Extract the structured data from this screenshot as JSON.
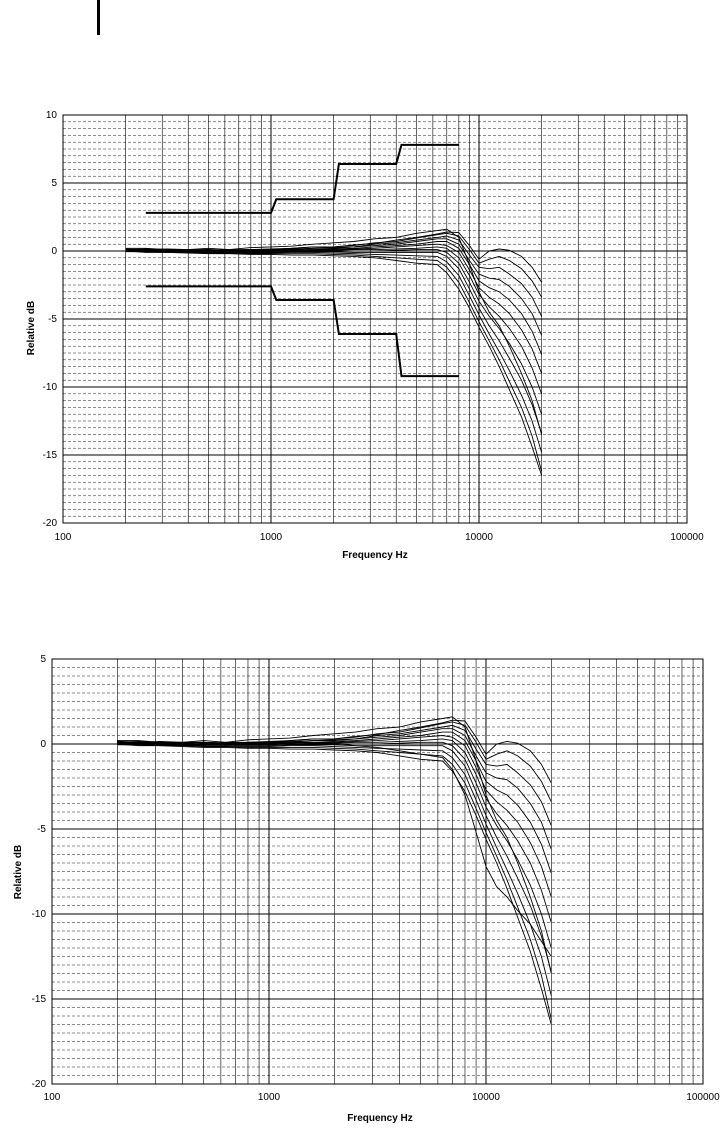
{
  "chart_data": [
    {
      "type": "line",
      "title": "",
      "xlabel": "Frequency Hz",
      "ylabel": "Relative dB",
      "x_scale": "log",
      "xlim": [
        100,
        100000
      ],
      "ylim": [
        -20,
        10
      ],
      "y_major_step": 5,
      "x_ticks": [
        "100",
        "1000",
        "10000",
        "100000"
      ],
      "y_ticks": [
        "10",
        "5",
        "0",
        "-5",
        "-10",
        "-15",
        "-20"
      ],
      "grid": true,
      "legend": "none",
      "curve_color": "#000000",
      "x": [
        200,
        250,
        315,
        400,
        500,
        630,
        800,
        1000,
        1250,
        1600,
        2000,
        2500,
        3150,
        4000,
        5000,
        6300,
        7000,
        8000,
        9000,
        10000,
        11200,
        12500,
        14000,
        16000,
        18000,
        20000
      ],
      "series": [
        {
          "values": [
            0.1,
            0.15,
            0.1,
            0.05,
            0.1,
            0.0,
            0.1,
            0.15,
            0.2,
            0.3,
            0.3,
            0.45,
            0.55,
            0.8,
            1.0,
            1.25,
            1.4,
            1.35,
            0.4,
            -0.6,
            0.0,
            0.15,
            0.05,
            -0.4,
            -1.2,
            -2.3
          ]
        },
        {
          "values": [
            0.2,
            0.2,
            0.1,
            0.1,
            0.1,
            0.05,
            0.1,
            0.1,
            0.2,
            0.3,
            0.3,
            0.4,
            0.6,
            0.7,
            0.95,
            1.2,
            1.3,
            1.1,
            0.1,
            -0.9,
            -0.6,
            -0.4,
            -0.7,
            -1.3,
            -2.2,
            -3.4
          ]
        },
        {
          "values": [
            0.1,
            0.1,
            0.15,
            0.1,
            0.05,
            0.1,
            0.1,
            0.1,
            0.15,
            0.2,
            0.25,
            0.3,
            0.5,
            0.6,
            0.8,
            1.0,
            1.1,
            0.8,
            -0.3,
            -1.2,
            -1.3,
            -1.2,
            -1.7,
            -2.4,
            -3.4,
            -4.8
          ]
        },
        {
          "values": [
            0.15,
            0.1,
            0.1,
            0.05,
            0.1,
            0.05,
            0.05,
            0.1,
            0.1,
            0.2,
            0.2,
            0.3,
            0.4,
            0.5,
            0.7,
            0.9,
            0.9,
            0.5,
            -0.7,
            -1.7,
            -2.0,
            -2.1,
            -2.6,
            -3.5,
            -4.6,
            -6.2
          ]
        },
        {
          "values": [
            0.1,
            0.1,
            0.05,
            0.05,
            0.0,
            0.0,
            0.05,
            0.05,
            0.1,
            0.1,
            0.15,
            0.2,
            0.3,
            0.4,
            0.5,
            0.7,
            0.7,
            0.2,
            -1.0,
            -2.2,
            -2.7,
            -3.0,
            -3.6,
            -4.6,
            -5.9,
            -7.6
          ]
        },
        {
          "values": [
            0.1,
            0.05,
            0.05,
            0.0,
            0.0,
            0.0,
            0.0,
            0.05,
            0.05,
            0.1,
            0.1,
            0.15,
            0.2,
            0.3,
            0.4,
            0.5,
            0.4,
            -0.1,
            -1.4,
            -2.7,
            -3.4,
            -3.9,
            -4.6,
            -5.8,
            -7.2,
            -9.0
          ]
        },
        {
          "values": [
            0.05,
            0.05,
            0.0,
            0.0,
            0.0,
            -0.05,
            0.0,
            0.0,
            0.0,
            0.05,
            0.05,
            0.1,
            0.1,
            0.15,
            0.2,
            0.3,
            0.2,
            -0.5,
            -1.8,
            -3.2,
            -4.1,
            -4.8,
            -5.7,
            -7.0,
            -8.6,
            -10.5
          ]
        },
        {
          "values": [
            0.1,
            0.0,
            0.0,
            -0.05,
            -0.05,
            -0.05,
            -0.05,
            -0.05,
            0.0,
            0.0,
            0.0,
            0.0,
            0.0,
            0.05,
            0.1,
            0.1,
            -0.1,
            -0.9,
            -2.3,
            -3.7,
            -4.8,
            -5.7,
            -6.8,
            -8.3,
            -10.0,
            -12.0
          ]
        },
        {
          "values": [
            0.0,
            0.0,
            -0.05,
            -0.05,
            -0.1,
            -0.1,
            -0.1,
            -0.1,
            -0.05,
            -0.05,
            -0.05,
            -0.1,
            -0.1,
            -0.1,
            -0.1,
            -0.1,
            -0.4,
            -1.3,
            -2.8,
            -4.2,
            -5.5,
            -6.6,
            -7.9,
            -9.5,
            -11.3,
            -13.4
          ]
        },
        {
          "values": [
            0.0,
            -0.05,
            -0.05,
            -0.1,
            -0.1,
            -0.15,
            -0.15,
            -0.15,
            -0.1,
            -0.1,
            -0.15,
            -0.2,
            -0.25,
            -0.3,
            -0.35,
            -0.4,
            -0.8,
            -1.8,
            -3.3,
            -4.7,
            -6.1,
            -7.4,
            -8.8,
            -10.6,
            -12.5,
            -14.8
          ]
        },
        {
          "values": [
            -0.05,
            -0.05,
            -0.1,
            -0.1,
            -0.15,
            -0.15,
            -0.2,
            -0.2,
            -0.2,
            -0.2,
            -0.25,
            -0.3,
            -0.4,
            -0.5,
            -0.6,
            -0.7,
            -1.2,
            -2.3,
            -3.8,
            -5.2,
            -6.6,
            -8.0,
            -9.6,
            -11.5,
            -13.6,
            -16.2
          ]
        },
        {
          "values": [
            0.0,
            -0.1,
            -0.1,
            -0.15,
            -0.2,
            -0.2,
            -0.25,
            -0.25,
            -0.3,
            -0.3,
            -0.35,
            -0.4,
            -0.5,
            -0.7,
            -0.9,
            -1.0,
            -1.6,
            -2.8,
            -4.2,
            -5.6,
            -7.0,
            -8.5,
            -10.2,
            -12.2,
            -14.4,
            -16.5
          ]
        },
        {
          "values": [
            0.1,
            0.0,
            0.05,
            0.1,
            0.2,
            0.1,
            0.25,
            0.3,
            0.35,
            0.5,
            0.6,
            0.7,
            0.9,
            1.0,
            1.3,
            1.5,
            1.6,
            1.0,
            -1.0,
            -3.0,
            -4.5,
            -5.5,
            -7.0,
            -9.0,
            -11.0,
            -13.5
          ]
        }
      ],
      "limits": [
        {
          "x": [
            250,
            1000,
            1000,
            1060,
            2000,
            2000,
            2120,
            4000,
            4000,
            4240,
            8000
          ],
          "values": [
            2.8,
            2.8,
            2.8,
            3.8,
            3.8,
            3.8,
            6.4,
            6.4,
            6.4,
            7.8,
            7.8
          ]
        },
        {
          "x": [
            250,
            1000,
            1000,
            1060,
            2000,
            2000,
            2120,
            4000,
            4000,
            4240,
            8000
          ],
          "values": [
            -2.6,
            -2.6,
            -2.6,
            -3.6,
            -3.6,
            -3.6,
            -6.1,
            -6.1,
            -6.1,
            -9.2,
            -9.2
          ]
        }
      ]
    },
    {
      "type": "line",
      "title": "",
      "xlabel": "Frequency Hz",
      "ylabel": "Relative dB",
      "x_scale": "log",
      "xlim": [
        100,
        100000
      ],
      "ylim": [
        -20,
        5
      ],
      "y_major_step": 5,
      "x_ticks": [
        "100",
        "1000",
        "10000",
        "100000"
      ],
      "y_ticks": [
        "5",
        "0",
        "-5",
        "-10",
        "-15",
        "-20"
      ],
      "grid": true,
      "legend": "none",
      "curve_color": "#000000",
      "x": [
        200,
        250,
        315,
        400,
        500,
        630,
        800,
        1000,
        1250,
        1600,
        2000,
        2500,
        3150,
        4000,
        5000,
        6300,
        7000,
        8000,
        9000,
        10000,
        11200,
        12500,
        14000,
        16000,
        18000,
        20000
      ],
      "series": [
        {
          "values": [
            0.1,
            0.15,
            0.1,
            0.05,
            0.1,
            0.0,
            0.1,
            0.15,
            0.2,
            0.3,
            0.3,
            0.45,
            0.55,
            0.8,
            1.0,
            1.25,
            1.4,
            1.35,
            0.4,
            -0.6,
            0.0,
            0.15,
            0.05,
            -0.4,
            -1.2,
            -2.3
          ]
        },
        {
          "values": [
            0.2,
            0.2,
            0.1,
            0.1,
            0.1,
            0.05,
            0.1,
            0.1,
            0.2,
            0.3,
            0.3,
            0.4,
            0.6,
            0.7,
            0.95,
            1.2,
            1.3,
            1.1,
            0.1,
            -0.9,
            -0.6,
            -0.4,
            -0.7,
            -1.3,
            -2.2,
            -3.4
          ]
        },
        {
          "values": [
            0.1,
            0.1,
            0.15,
            0.1,
            0.05,
            0.1,
            0.1,
            0.1,
            0.15,
            0.2,
            0.25,
            0.3,
            0.5,
            0.6,
            0.8,
            1.0,
            1.1,
            0.8,
            -0.3,
            -1.2,
            -1.3,
            -1.2,
            -1.7,
            -2.4,
            -3.4,
            -4.8
          ]
        },
        {
          "values": [
            0.15,
            0.1,
            0.1,
            0.05,
            0.1,
            0.05,
            0.05,
            0.1,
            0.1,
            0.2,
            0.2,
            0.3,
            0.4,
            0.5,
            0.7,
            0.9,
            0.9,
            0.5,
            -0.7,
            -1.7,
            -2.0,
            -2.1,
            -2.6,
            -3.5,
            -4.6,
            -6.2
          ]
        },
        {
          "values": [
            0.1,
            0.1,
            0.05,
            0.05,
            0.0,
            0.0,
            0.05,
            0.05,
            0.1,
            0.1,
            0.15,
            0.2,
            0.3,
            0.4,
            0.5,
            0.7,
            0.7,
            0.2,
            -1.0,
            -2.2,
            -2.7,
            -3.0,
            -3.6,
            -4.6,
            -5.9,
            -7.6
          ]
        },
        {
          "values": [
            0.1,
            0.05,
            0.05,
            0.0,
            0.0,
            0.0,
            0.0,
            0.05,
            0.05,
            0.1,
            0.1,
            0.15,
            0.2,
            0.3,
            0.4,
            0.5,
            0.4,
            -0.1,
            -1.4,
            -2.7,
            -3.4,
            -3.9,
            -4.6,
            -5.8,
            -7.2,
            -9.0
          ]
        },
        {
          "values": [
            0.05,
            0.05,
            0.0,
            0.0,
            0.0,
            -0.05,
            0.0,
            0.0,
            0.0,
            0.05,
            0.05,
            0.1,
            0.1,
            0.15,
            0.2,
            0.3,
            0.2,
            -0.5,
            -1.8,
            -3.2,
            -4.1,
            -4.8,
            -5.7,
            -7.0,
            -8.6,
            -10.5
          ]
        },
        {
          "values": [
            0.1,
            0.0,
            0.0,
            -0.05,
            -0.05,
            -0.05,
            -0.05,
            -0.05,
            0.0,
            0.0,
            0.0,
            0.0,
            0.0,
            0.05,
            0.1,
            0.1,
            -0.1,
            -0.9,
            -2.3,
            -3.7,
            -4.8,
            -5.7,
            -6.8,
            -8.3,
            -10.0,
            -12.0
          ]
        },
        {
          "values": [
            0.0,
            0.0,
            -0.05,
            -0.05,
            -0.1,
            -0.1,
            -0.1,
            -0.1,
            -0.05,
            -0.05,
            -0.05,
            -0.1,
            -0.1,
            -0.1,
            -0.1,
            -0.1,
            -0.4,
            -1.3,
            -2.8,
            -4.2,
            -5.5,
            -6.6,
            -7.9,
            -9.5,
            -11.3,
            -13.4
          ]
        },
        {
          "values": [
            0.0,
            -0.05,
            -0.05,
            -0.1,
            -0.1,
            -0.15,
            -0.15,
            -0.15,
            -0.1,
            -0.1,
            -0.15,
            -0.2,
            -0.25,
            -0.3,
            -0.35,
            -0.4,
            -0.8,
            -1.8,
            -3.3,
            -4.7,
            -6.1,
            -7.4,
            -8.8,
            -10.6,
            -12.5,
            -14.8
          ]
        },
        {
          "values": [
            -0.05,
            -0.05,
            -0.1,
            -0.1,
            -0.15,
            -0.15,
            -0.2,
            -0.2,
            -0.2,
            -0.2,
            -0.25,
            -0.3,
            -0.4,
            -0.5,
            -0.6,
            -0.7,
            -1.2,
            -2.3,
            -3.8,
            -5.2,
            -6.6,
            -8.0,
            -9.6,
            -11.5,
            -13.6,
            -16.2
          ]
        },
        {
          "values": [
            0.0,
            -0.1,
            -0.1,
            -0.15,
            -0.2,
            -0.2,
            -0.25,
            -0.25,
            -0.3,
            -0.3,
            -0.35,
            -0.4,
            -0.5,
            -0.7,
            -0.9,
            -1.0,
            -1.6,
            -2.8,
            -4.2,
            -5.6,
            -7.0,
            -8.5,
            -10.2,
            -12.2,
            -14.4,
            -16.5
          ]
        },
        {
          "values": [
            0.1,
            0.0,
            0.05,
            0.1,
            0.2,
            0.1,
            0.25,
            0.3,
            0.35,
            0.5,
            0.6,
            0.7,
            0.9,
            1.0,
            1.3,
            1.5,
            1.6,
            1.0,
            -1.0,
            -3.0,
            -4.5,
            -5.5,
            -7.0,
            -9.0,
            -11.0,
            -13.5
          ]
        },
        {
          "values": [
            0.15,
            0.1,
            0.1,
            0.05,
            0.1,
            0.05,
            0.05,
            0.1,
            0.1,
            0.1,
            0.05,
            -0.1,
            -0.2,
            -0.4,
            -0.6,
            -0.8,
            -1.5,
            -3.0,
            -5.2,
            -7.2,
            -8.4,
            -9.0,
            -9.8,
            -10.6,
            -11.6,
            -12.5
          ]
        }
      ]
    }
  ]
}
